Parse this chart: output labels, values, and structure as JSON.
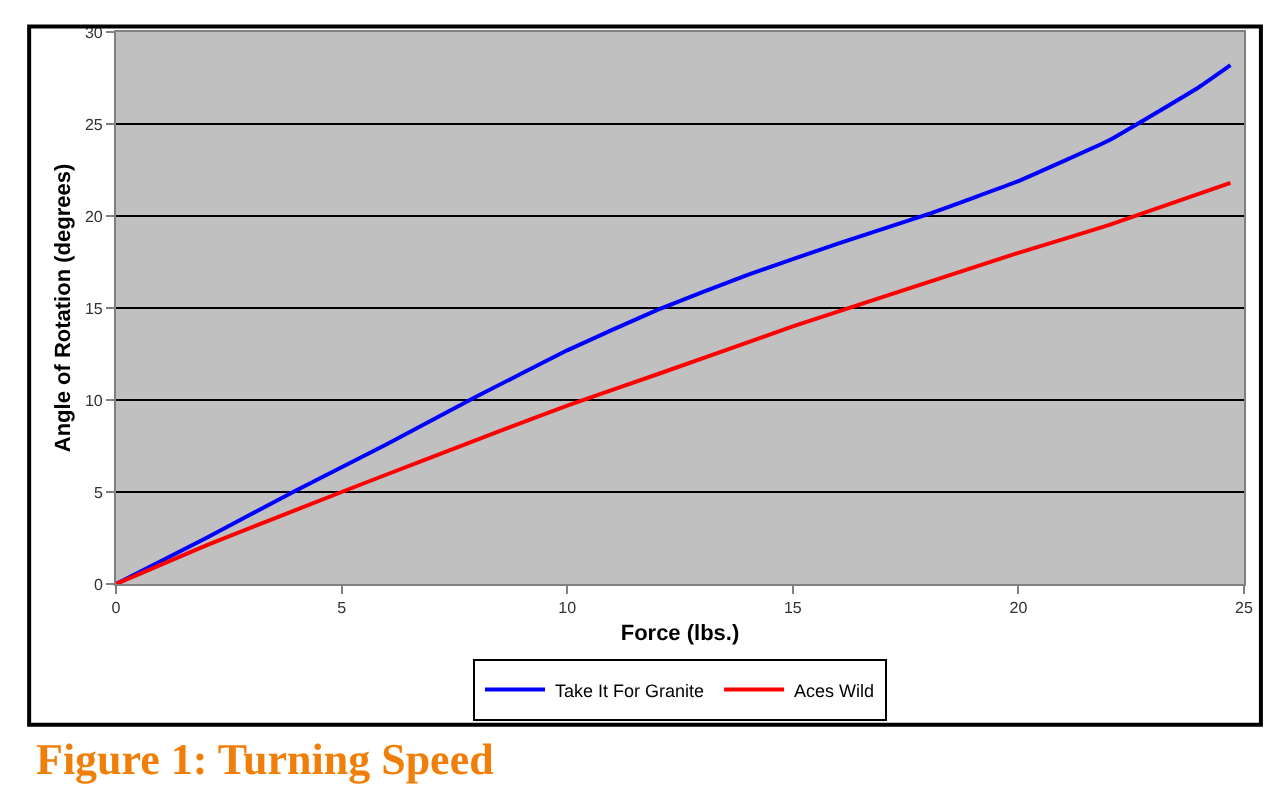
{
  "chart_data": {
    "type": "line",
    "title": "Figure 1: Turning Speed",
    "xlabel": "Force (lbs.)",
    "ylabel": "Angle of Rotation (degrees)",
    "series": [
      {
        "name": "Take It For Granite",
        "color": "#0000ff",
        "x": [
          0,
          2,
          4,
          6,
          8,
          10,
          12,
          14,
          16,
          18,
          20,
          22,
          24,
          24.7
        ],
        "values": [
          0,
          2.5,
          5.1,
          7.6,
          10.2,
          12.7,
          14.9,
          16.8,
          18.5,
          20.1,
          21.9,
          24.1,
          27,
          28.2
        ]
      },
      {
        "name": "Aces Wild",
        "color": "#ff0000",
        "x": [
          0,
          2,
          5,
          7,
          10,
          12,
          15,
          17,
          20,
          22,
          24.7
        ],
        "values": [
          0,
          2.1,
          5.0,
          6.9,
          9.7,
          11.4,
          14.0,
          15.6,
          18.0,
          19.5,
          21.8
        ]
      }
    ],
    "xlim": [
      0,
      25
    ],
    "xticks": [
      0,
      5,
      10,
      15,
      20,
      25
    ],
    "ylim": [
      0,
      30
    ],
    "yticks": [
      0,
      5,
      10,
      15,
      20,
      25,
      30
    ],
    "grid": "y",
    "legend": "bottom",
    "marker": "none",
    "line_style": "solid"
  }
}
